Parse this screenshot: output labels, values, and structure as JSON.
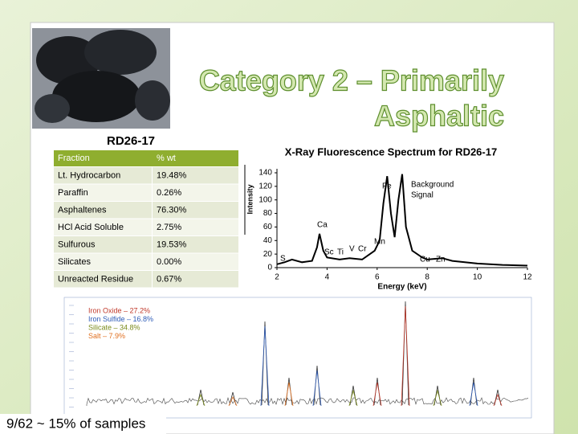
{
  "title_lines": [
    "Category 2 – Primarily",
    "Asphaltic"
  ],
  "sample": "RD26-17",
  "table": {
    "header": [
      "Fraction",
      "% wt"
    ],
    "rows": [
      [
        "Lt. Hydrocarbon",
        "19.48%"
      ],
      [
        "Paraffin",
        "0.26%"
      ],
      [
        "Asphaltenes",
        "76.30%"
      ],
      [
        "HCl Acid Soluble",
        "2.75%"
      ],
      [
        "Sulfurous",
        "19.53%"
      ],
      [
        "Silicates",
        "0.00%"
      ],
      [
        "Unreacted Residue",
        "0.67%"
      ]
    ]
  },
  "chart_data": {
    "type": "line",
    "title": "X-Ray Fluorescence Spectrum for RD26-17",
    "x_label": "Energy (keV)",
    "y_label": "Intensity",
    "x": [
      2.0,
      2.3,
      2.6,
      3.0,
      3.4,
      3.6,
      3.7,
      3.85,
      4.0,
      4.5,
      4.9,
      5.4,
      5.9,
      6.1,
      6.25,
      6.4,
      6.55,
      6.7,
      6.85,
      7.0,
      7.15,
      7.4,
      7.8,
      8.0,
      8.6,
      9.0,
      10.0,
      11.0,
      12.0
    ],
    "values": [
      5,
      8,
      12,
      8,
      10,
      30,
      50,
      25,
      15,
      12,
      14,
      12,
      25,
      40,
      95,
      135,
      80,
      45,
      100,
      138,
      60,
      25,
      15,
      12,
      14,
      10,
      6,
      4,
      3
    ],
    "color": "#000000",
    "xlim": [
      2,
      12
    ],
    "xticks": [
      2,
      4,
      6,
      8,
      10,
      12
    ],
    "ylim": [
      0,
      140
    ],
    "yticks": [
      0,
      20,
      40,
      60,
      80,
      100,
      120,
      140
    ],
    "annotations": [
      "Fe",
      "Background",
      "Signal",
      "Ca",
      "Mn",
      "S",
      "Sc",
      "Ti",
      "V",
      "Cr",
      "Cu",
      "Zn"
    ]
  },
  "xrd_legend": [
    {
      "text": "Iron Oxide – 27.2%",
      "color": "#c0392b"
    },
    {
      "text": "Iron Sulfide – 16.8%",
      "color": "#2e5cb8"
    },
    {
      "text": "Silicate – 34.8%",
      "color": "#7a8a1a"
    },
    {
      "text": "Salt – 7.9%",
      "color": "#e07020"
    }
  ],
  "footer": "9/62 ~ 15% of samples"
}
